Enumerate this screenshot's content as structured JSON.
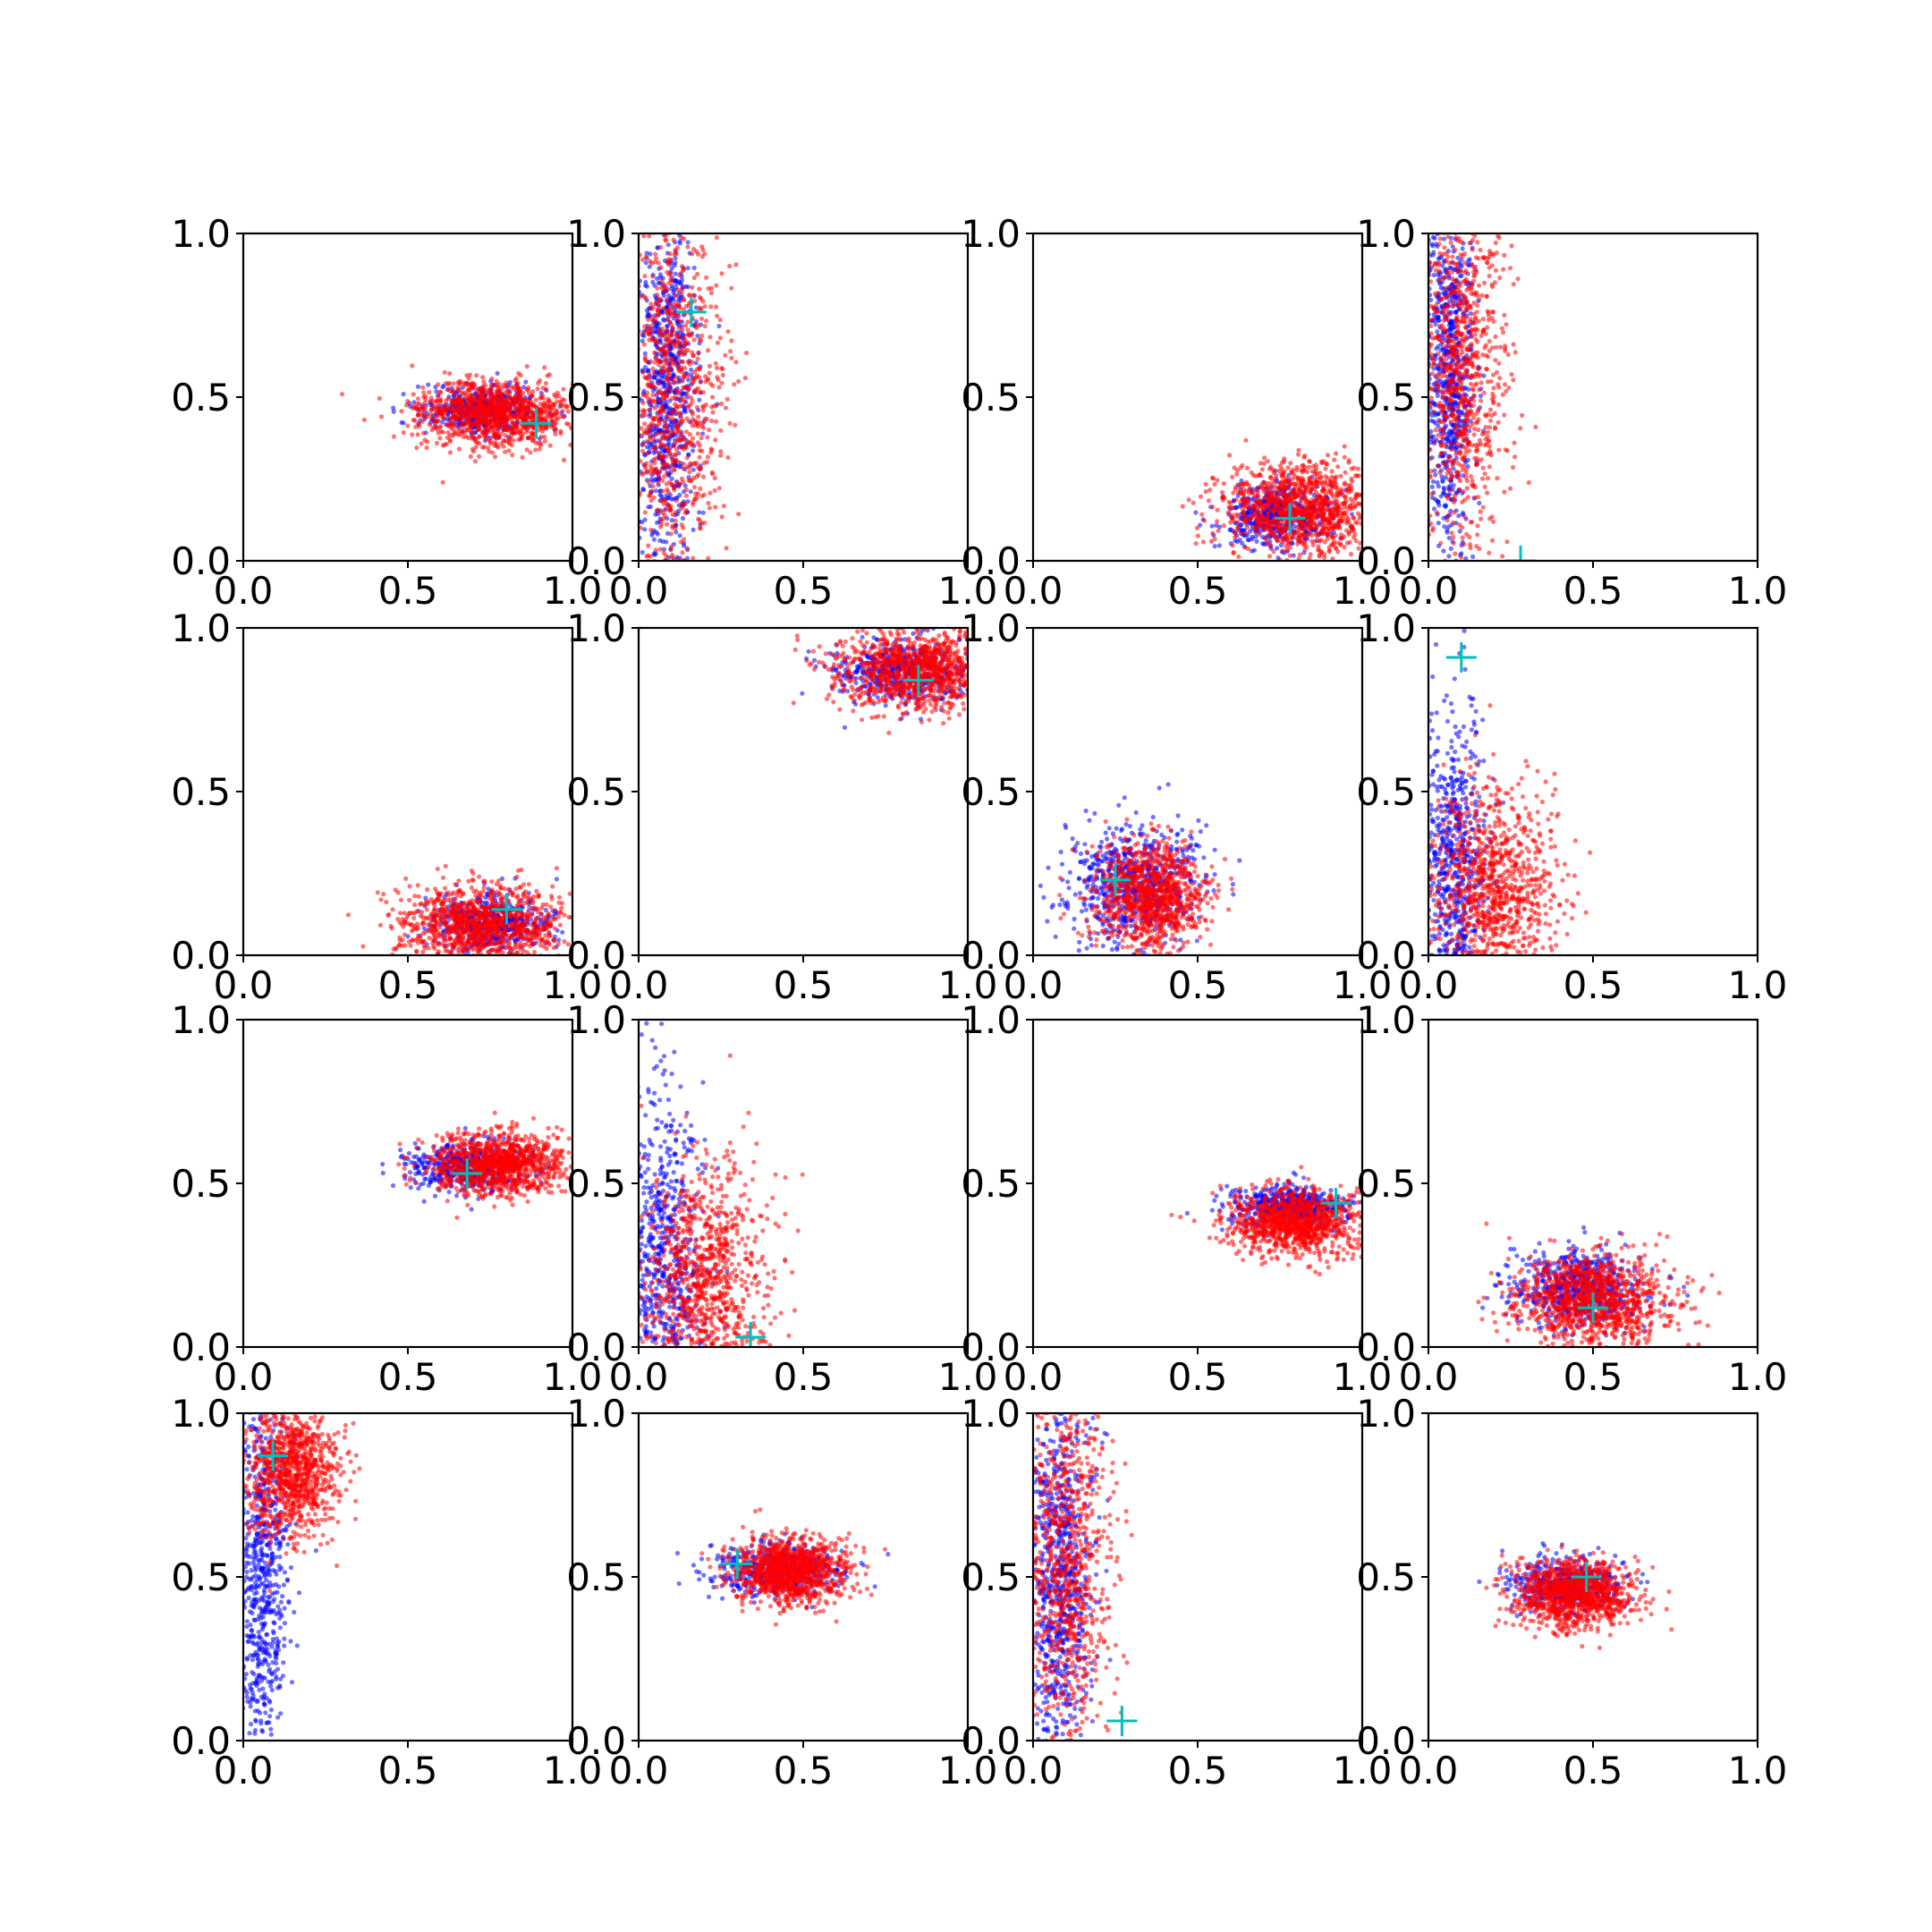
{
  "figure": {
    "rows": 4,
    "cols": 4,
    "series_colors": {
      "cloud_a": "#0000ff",
      "cloud_b": "#ff0000",
      "marker": "#00bfbf"
    }
  },
  "chart_data": [
    {
      "type": "scatter",
      "row": 0,
      "col": 0,
      "xlim": [
        0,
        1
      ],
      "ylim": [
        0,
        1
      ],
      "xticks": [
        "0.0",
        "0.5",
        "1.0"
      ],
      "yticks": [
        "0.0",
        "0.5",
        "1.0"
      ],
      "cloud_a": {
        "center": [
          0.72,
          0.46
        ],
        "spread": [
          0.09,
          0.035
        ],
        "count": 500
      },
      "cloud_b": {
        "center": [
          0.76,
          0.45
        ],
        "spread": [
          0.12,
          0.05
        ],
        "count": 1100
      },
      "marker": [
        0.89,
        0.42
      ]
    },
    {
      "type": "scatter",
      "row": 0,
      "col": 1,
      "xlim": [
        0,
        1
      ],
      "ylim": [
        0,
        1
      ],
      "xticks": [
        "0.0",
        "0.5",
        "1.0"
      ],
      "yticks": [
        "0.0",
        "0.5",
        "1.0"
      ],
      "cloud_a": {
        "center": [
          0.08,
          0.5
        ],
        "spread": [
          0.05,
          0.3
        ],
        "count": 800
      },
      "cloud_b": {
        "center": [
          0.1,
          0.5
        ],
        "spread": [
          0.08,
          0.28
        ],
        "count": 900
      },
      "marker": [
        0.16,
        0.76
      ]
    },
    {
      "type": "scatter",
      "row": 0,
      "col": 2,
      "xlim": [
        0,
        1
      ],
      "ylim": [
        0,
        1
      ],
      "xticks": [
        "0.0",
        "0.5",
        "1.0"
      ],
      "yticks": [
        "0.0",
        "0.5",
        "1.0"
      ],
      "cloud_a": {
        "center": [
          0.74,
          0.14
        ],
        "spread": [
          0.08,
          0.05
        ],
        "count": 500
      },
      "cloud_b": {
        "center": [
          0.82,
          0.16
        ],
        "spread": [
          0.12,
          0.07
        ],
        "count": 1100
      },
      "marker": [
        0.78,
        0.13
      ]
    },
    {
      "type": "scatter",
      "row": 0,
      "col": 3,
      "xlim": [
        0,
        1
      ],
      "ylim": [
        0,
        1
      ],
      "xticks": [
        "0.0",
        "0.5",
        "1.0"
      ],
      "yticks": [
        "0.0",
        "0.5",
        "1.0"
      ],
      "cloud_a": {
        "center": [
          0.06,
          0.55
        ],
        "spread": [
          0.04,
          0.3
        ],
        "count": 800
      },
      "cloud_b": {
        "center": [
          0.1,
          0.6
        ],
        "spread": [
          0.07,
          0.28
        ],
        "count": 900
      },
      "marker": [
        0.28,
        0.0
      ]
    },
    {
      "type": "scatter",
      "row": 1,
      "col": 0,
      "xlim": [
        0,
        1
      ],
      "ylim": [
        0,
        1
      ],
      "xticks": [
        "0.0",
        "0.5",
        "1.0"
      ],
      "yticks": [
        "0.0",
        "0.5",
        "1.0"
      ],
      "cloud_a": {
        "center": [
          0.75,
          0.1
        ],
        "spread": [
          0.09,
          0.04
        ],
        "count": 500
      },
      "cloud_b": {
        "center": [
          0.72,
          0.09
        ],
        "spread": [
          0.12,
          0.06
        ],
        "count": 1100
      },
      "marker": [
        0.8,
        0.14
      ]
    },
    {
      "type": "scatter",
      "row": 1,
      "col": 1,
      "xlim": [
        0,
        1
      ],
      "ylim": [
        0,
        1
      ],
      "xticks": [
        "0.0",
        "0.5",
        "1.0"
      ],
      "yticks": [
        "0.0",
        "0.5",
        "1.0"
      ],
      "cloud_a": {
        "center": [
          0.8,
          0.87
        ],
        "spread": [
          0.1,
          0.05
        ],
        "count": 500
      },
      "cloud_b": {
        "center": [
          0.85,
          0.87
        ],
        "spread": [
          0.12,
          0.06
        ],
        "count": 1100
      },
      "marker": [
        0.85,
        0.84
      ]
    },
    {
      "type": "scatter",
      "row": 1,
      "col": 2,
      "xlim": [
        0,
        1
      ],
      "ylim": [
        0,
        1
      ],
      "xticks": [
        "0.0",
        "0.5",
        "1.0"
      ],
      "yticks": [
        "0.0",
        "0.5",
        "1.0"
      ],
      "cloud_a": {
        "center": [
          0.3,
          0.22
        ],
        "spread": [
          0.1,
          0.09
        ],
        "count": 700
      },
      "cloud_b": {
        "center": [
          0.36,
          0.18
        ],
        "spread": [
          0.08,
          0.08
        ],
        "count": 1000
      },
      "marker": [
        0.25,
        0.23
      ]
    },
    {
      "type": "scatter",
      "row": 1,
      "col": 3,
      "xlim": [
        0,
        1
      ],
      "ylim": [
        0,
        1
      ],
      "xticks": [
        "0.0",
        "0.5",
        "1.0"
      ],
      "yticks": [
        "0.0",
        "0.5",
        "1.0"
      ],
      "cloud_a": {
        "center": [
          0.08,
          0.25
        ],
        "spread": [
          0.05,
          0.25
        ],
        "count": 700
      },
      "cloud_b": {
        "center": [
          0.2,
          0.2
        ],
        "spread": [
          0.1,
          0.16
        ],
        "count": 1000
      },
      "marker": [
        0.1,
        0.91
      ]
    },
    {
      "type": "scatter",
      "row": 2,
      "col": 0,
      "xlim": [
        0,
        1
      ],
      "ylim": [
        0,
        1
      ],
      "xticks": [
        "0.0",
        "0.5",
        "1.0"
      ],
      "yticks": [
        "0.0",
        "0.5",
        "1.0"
      ],
      "cloud_a": {
        "center": [
          0.68,
          0.55
        ],
        "spread": [
          0.09,
          0.035
        ],
        "count": 500
      },
      "cloud_b": {
        "center": [
          0.78,
          0.56
        ],
        "spread": [
          0.1,
          0.05
        ],
        "count": 1100
      },
      "marker": [
        0.68,
        0.53
      ]
    },
    {
      "type": "scatter",
      "row": 2,
      "col": 1,
      "xlim": [
        0,
        1
      ],
      "ylim": [
        0,
        1
      ],
      "xticks": [
        "0.0",
        "0.5",
        "1.0"
      ],
      "yticks": [
        "0.0",
        "0.5",
        "1.0"
      ],
      "cloud_a": {
        "center": [
          0.08,
          0.25
        ],
        "spread": [
          0.06,
          0.28
        ],
        "count": 700
      },
      "cloud_b": {
        "center": [
          0.2,
          0.2
        ],
        "spread": [
          0.1,
          0.18
        ],
        "count": 1000
      },
      "marker": [
        0.34,
        0.03
      ]
    },
    {
      "type": "scatter",
      "row": 2,
      "col": 2,
      "xlim": [
        0,
        1
      ],
      "ylim": [
        0,
        1
      ],
      "xticks": [
        "0.0",
        "0.5",
        "1.0"
      ],
      "yticks": [
        "0.0",
        "0.5",
        "1.0"
      ],
      "cloud_a": {
        "center": [
          0.78,
          0.43
        ],
        "spread": [
          0.09,
          0.03
        ],
        "count": 500
      },
      "cloud_b": {
        "center": [
          0.8,
          0.38
        ],
        "spread": [
          0.1,
          0.05
        ],
        "count": 1100
      },
      "marker": [
        0.92,
        0.44
      ]
    },
    {
      "type": "scatter",
      "row": 2,
      "col": 3,
      "xlim": [
        0,
        1
      ],
      "ylim": [
        0,
        1
      ],
      "xticks": [
        "0.0",
        "0.5",
        "1.0"
      ],
      "yticks": [
        "0.0",
        "0.5",
        "1.0"
      ],
      "cloud_a": {
        "center": [
          0.45,
          0.18
        ],
        "spread": [
          0.1,
          0.06
        ],
        "count": 600
      },
      "cloud_b": {
        "center": [
          0.5,
          0.15
        ],
        "spread": [
          0.12,
          0.07
        ],
        "count": 1100
      },
      "marker": [
        0.5,
        0.12
      ]
    },
    {
      "type": "scatter",
      "row": 3,
      "col": 0,
      "xlim": [
        0,
        1
      ],
      "ylim": [
        0,
        1
      ],
      "xticks": [
        "0.0",
        "0.5",
        "1.0"
      ],
      "yticks": [
        "0.0",
        "0.5",
        "1.0"
      ],
      "cloud_a": {
        "center": [
          0.06,
          0.5
        ],
        "spread": [
          0.04,
          0.3
        ],
        "count": 700
      },
      "cloud_b": {
        "center": [
          0.15,
          0.82
        ],
        "spread": [
          0.07,
          0.1
        ],
        "count": 1000
      },
      "marker": [
        0.09,
        0.87
      ]
    },
    {
      "type": "scatter",
      "row": 3,
      "col": 1,
      "xlim": [
        0,
        1
      ],
      "ylim": [
        0,
        1
      ],
      "xticks": [
        "0.0",
        "0.5",
        "1.0"
      ],
      "yticks": [
        "0.0",
        "0.5",
        "1.0"
      ],
      "cloud_a": {
        "center": [
          0.42,
          0.52
        ],
        "spread": [
          0.1,
          0.04
        ],
        "count": 500
      },
      "cloud_b": {
        "center": [
          0.46,
          0.52
        ],
        "spread": [
          0.09,
          0.05
        ],
        "count": 1100
      },
      "marker": [
        0.3,
        0.54
      ]
    },
    {
      "type": "scatter",
      "row": 3,
      "col": 2,
      "xlim": [
        0,
        1
      ],
      "ylim": [
        0,
        1
      ],
      "xticks": [
        "0.0",
        "0.5",
        "1.0"
      ],
      "yticks": [
        "0.0",
        "0.5",
        "1.0"
      ],
      "cloud_a": {
        "center": [
          0.08,
          0.5
        ],
        "spread": [
          0.05,
          0.3
        ],
        "count": 800
      },
      "cloud_b": {
        "center": [
          0.1,
          0.55
        ],
        "spread": [
          0.07,
          0.28
        ],
        "count": 900
      },
      "marker": [
        0.27,
        0.06
      ]
    },
    {
      "type": "scatter",
      "row": 3,
      "col": 3,
      "xlim": [
        0,
        1
      ],
      "ylim": [
        0,
        1
      ],
      "xticks": [
        "0.0",
        "0.5",
        "1.0"
      ],
      "yticks": [
        "0.0",
        "0.5",
        "1.0"
      ],
      "cloud_a": {
        "center": [
          0.42,
          0.48
        ],
        "spread": [
          0.08,
          0.04
        ],
        "count": 500
      },
      "cloud_b": {
        "center": [
          0.44,
          0.45
        ],
        "spread": [
          0.09,
          0.05
        ],
        "count": 1100
      },
      "marker": [
        0.48,
        0.5
      ]
    }
  ]
}
